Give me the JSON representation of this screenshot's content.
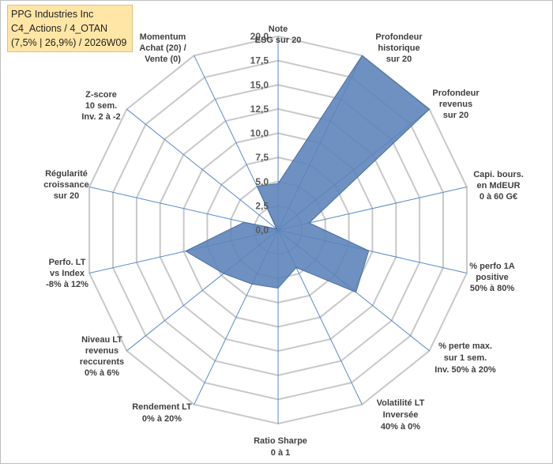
{
  "title_box": {
    "line1": "PPG Industries Inc",
    "line2": "C4_Actions / 4_OTAN",
    "line3": "(7,5% | 26,9%) / 2026W09"
  },
  "chart_data": {
    "type": "radar",
    "rlim": [
      0,
      20
    ],
    "tick_labels": [
      "0,0",
      "2,5",
      "5,0",
      "7,5",
      "10,0",
      "12,5",
      "15,0",
      "17,5",
      "20,0"
    ],
    "axes": [
      [
        "Note",
        "ESG sur 20"
      ],
      [
        "Profondeur",
        "historique",
        "sur 20"
      ],
      [
        "Profondeur",
        "revenus",
        "sur 20"
      ],
      [
        "Capi. bours.",
        "en MdEUR",
        "0 à 60 G€"
      ],
      [
        "% perfo 1A",
        "positive",
        "50% à 80%"
      ],
      [
        "% perte max.",
        "sur 1 sem.",
        "Inv. 50% à 20%"
      ],
      [
        "Volatilité LT",
        "Inversée",
        "40% à 0%"
      ],
      [
        "Ratio Sharpe",
        "0 à 1"
      ],
      [
        "Rendement LT",
        "0% à 20%"
      ],
      [
        "Niveau LT",
        "revenus",
        "reccurents",
        "0% à 6%"
      ],
      [
        "Perfo. LT",
        "vs Index",
        "-8% à 12%"
      ],
      [
        "Régularité",
        "croissance",
        "sur 20"
      ],
      [
        "Z-score",
        "10 sem.",
        "Inv. 2 à -2"
      ],
      [
        "Momentum",
        "Achat (20) /",
        "Vente (0)"
      ]
    ],
    "values": [
      4.8,
      20.0,
      20.0,
      3.3,
      9.6,
      10.3,
      4.3,
      6.0,
      6.2,
      7.2,
      9.8,
      3.6,
      0.2,
      5.0
    ],
    "colors": {
      "fill": "#5b82b8",
      "stroke": "#4a6fa0",
      "grid": "#c8c8c8",
      "spoke": "#5b8ac9"
    },
    "grid": true,
    "legend": "none"
  }
}
